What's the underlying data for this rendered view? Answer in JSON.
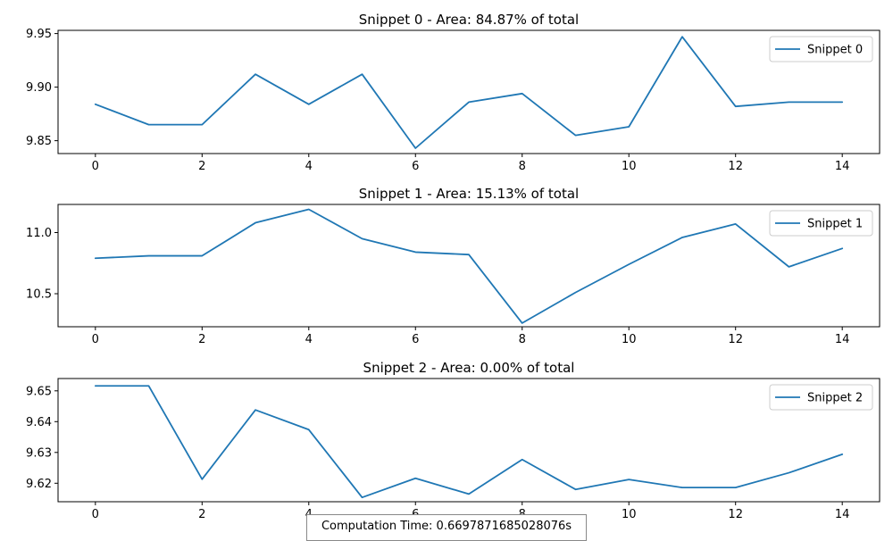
{
  "footer": {
    "computation_time": "Computation Time: 0.6697871685028076s"
  },
  "colors": {
    "series": "#1f77b4"
  },
  "chart_data": [
    {
      "type": "line",
      "title": "Snippet 0 - Area: 84.87% of total",
      "x": [
        0,
        1,
        2,
        3,
        4,
        5,
        6,
        7,
        8,
        9,
        10,
        11,
        12,
        13,
        14
      ],
      "xticks": [
        "0",
        "2",
        "4",
        "6",
        "8",
        "10",
        "12",
        "14"
      ],
      "xlim": [
        -0.7,
        14.7
      ],
      "ylim": [
        9.838,
        9.953
      ],
      "yticks": [
        "9.85",
        "9.90",
        "9.95"
      ],
      "series": [
        {
          "name": "Snippet 0",
          "values": [
            9.884,
            9.865,
            9.865,
            9.912,
            9.884,
            9.912,
            9.843,
            9.886,
            9.894,
            9.855,
            9.863,
            9.947,
            9.882,
            9.886,
            9.886
          ]
        }
      ],
      "legend": "top-right",
      "grid": false
    },
    {
      "type": "line",
      "title": "Snippet 1 - Area: 15.13% of total",
      "x": [
        0,
        1,
        2,
        3,
        4,
        5,
        6,
        7,
        8,
        9,
        10,
        11,
        12,
        13,
        14
      ],
      "xticks": [
        "0",
        "2",
        "4",
        "6",
        "8",
        "10",
        "12",
        "14"
      ],
      "xlim": [
        -0.7,
        14.7
      ],
      "ylim": [
        10.23,
        11.23
      ],
      "yticks": [
        "10.5",
        "11.0"
      ],
      "series": [
        {
          "name": "Snippet 1",
          "values": [
            10.79,
            10.81,
            10.81,
            11.08,
            11.19,
            10.95,
            10.84,
            10.82,
            10.26,
            10.51,
            10.74,
            10.96,
            11.07,
            10.72,
            10.87
          ]
        }
      ],
      "legend": "top-right",
      "grid": false
    },
    {
      "type": "line",
      "title": "Snippet 2 - Area: 0.00% of total",
      "x": [
        0,
        1,
        2,
        3,
        4,
        5,
        6,
        7,
        8,
        9,
        10,
        11,
        12,
        13,
        14
      ],
      "xticks": [
        "0",
        "2",
        "4",
        "6",
        "8",
        "10",
        "12",
        "14"
      ],
      "xlim": [
        -0.7,
        14.7
      ],
      "ylim": [
        9.614,
        9.654
      ],
      "yticks": [
        "9.62",
        "9.63",
        "9.64",
        "9.65"
      ],
      "series": [
        {
          "name": "Snippet 2",
          "values": [
            9.6516,
            9.6516,
            9.6213,
            9.6438,
            9.6374,
            9.6154,
            9.6216,
            9.6165,
            9.6277,
            9.618,
            9.6212,
            9.6186,
            9.6186,
            9.6234,
            9.6294
          ]
        }
      ],
      "legend": "top-right",
      "grid": false
    }
  ]
}
